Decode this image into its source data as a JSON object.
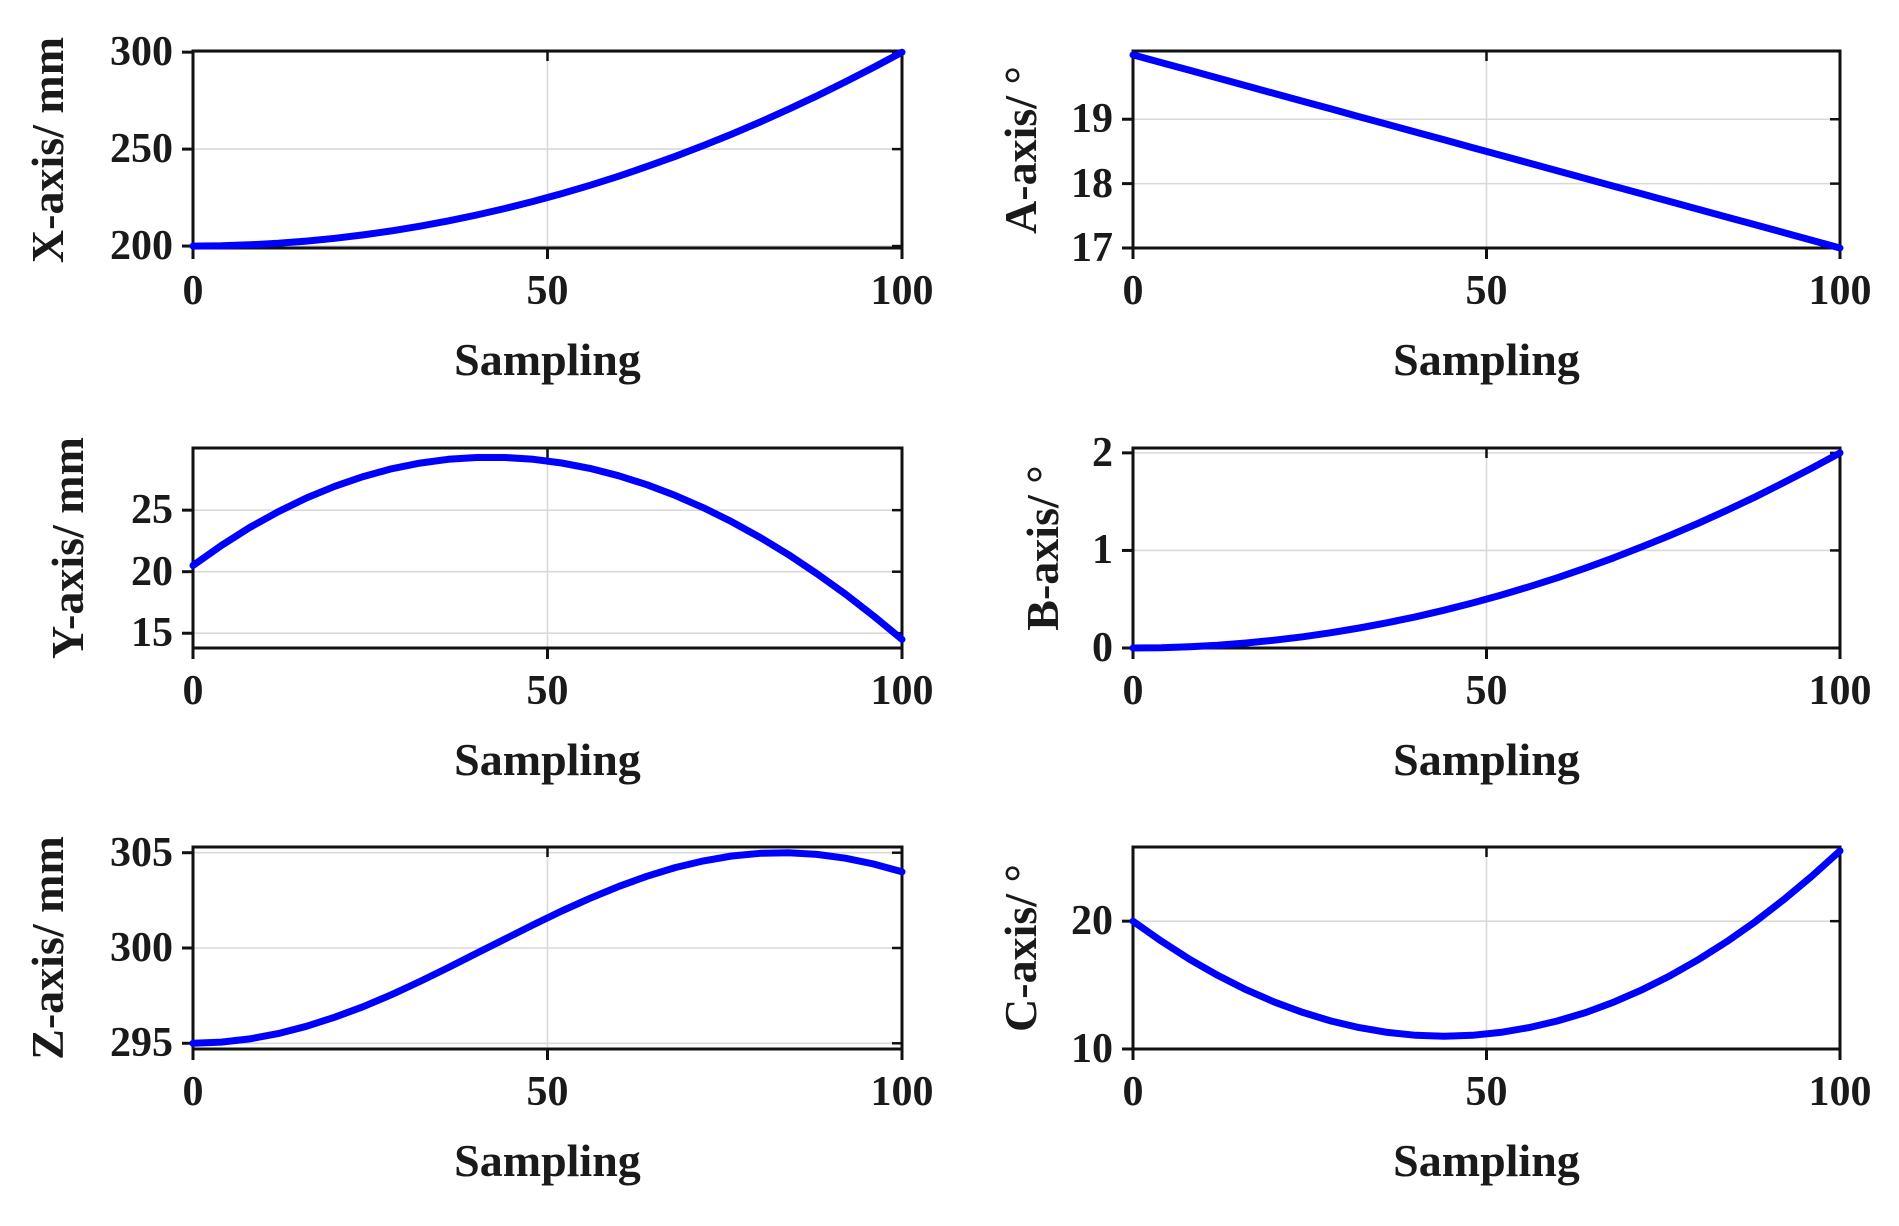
{
  "figure": {
    "background": "#ffffff",
    "axis_color": "#111111",
    "grid_color": "#d9d9d9",
    "text_color": "#1a1a1a"
  },
  "chart_data": {
    "type": "line",
    "layout": "3x2 subplots",
    "grid": true,
    "line_color": "#0000FF",
    "line_width": 7,
    "x_label_all": "Sampling",
    "x": [
      0,
      4,
      8,
      12,
      16,
      20,
      24,
      28,
      32,
      36,
      40,
      44,
      48,
      52,
      56,
      60,
      64,
      68,
      72,
      76,
      80,
      84,
      88,
      92,
      96,
      100
    ],
    "panels": [
      {
        "id": "x-axis",
        "ylabel": "X-axis/ mm",
        "xlabel": "Sampling",
        "xlim": [
          0,
          100
        ],
        "xticks": [
          0,
          50,
          100
        ],
        "ylim": [
          199,
          300.6
        ],
        "yticks": [
          200,
          250,
          300
        ],
        "values": [
          200,
          200.16,
          200.64,
          201.44,
          202.56,
          204,
          205.76,
          207.84,
          210.24,
          212.96,
          216,
          219.36,
          223.04,
          227.04,
          231.36,
          236,
          240.96,
          246.24,
          251.84,
          257.76,
          264,
          270.56,
          277.44,
          284.64,
          292.16,
          300
        ]
      },
      {
        "id": "a-axis",
        "ylabel": "A-axis/ °",
        "xlabel": "Sampling",
        "xlim": [
          0,
          100
        ],
        "xticks": [
          0,
          50,
          100
        ],
        "ylim": [
          17,
          20.06
        ],
        "yticks": [
          17,
          18,
          19
        ],
        "values": [
          20,
          19.88,
          19.76,
          19.64,
          19.52,
          19.4,
          19.28,
          19.16,
          19.04,
          18.92,
          18.8,
          18.68,
          18.56,
          18.44,
          18.32,
          18.2,
          18.08,
          17.96,
          17.84,
          17.72,
          17.6,
          17.48,
          17.36,
          17.24,
          17.12,
          17
        ]
      },
      {
        "id": "y-axis",
        "ylabel": "Y-axis/ mm",
        "xlabel": "Sampling",
        "xlim": [
          0,
          100
        ],
        "xticks": [
          0,
          50,
          100
        ],
        "ylim": [
          13.8,
          30.05
        ],
        "yticks": [
          15,
          20,
          25
        ],
        "values": [
          20.5,
          22.13,
          23.59,
          24.87,
          25.99,
          26.94,
          27.73,
          28.36,
          28.82,
          29.13,
          29.28,
          29.28,
          29.13,
          28.83,
          28.39,
          27.8,
          27.07,
          26.2,
          25.19,
          24.05,
          22.78,
          21.38,
          19.84,
          18.19,
          16.4,
          14.5
        ]
      },
      {
        "id": "b-axis",
        "ylabel": "B-axis/ °",
        "xlabel": "Sampling",
        "xlim": [
          0,
          100
        ],
        "xticks": [
          0,
          50,
          100
        ],
        "ylim": [
          0,
          2.05
        ],
        "yticks": [
          0,
          1,
          2
        ],
        "values": [
          0,
          0.003,
          0.013,
          0.029,
          0.051,
          0.08,
          0.115,
          0.157,
          0.205,
          0.259,
          0.32,
          0.387,
          0.461,
          0.541,
          0.627,
          0.72,
          0.819,
          0.925,
          1.037,
          1.155,
          1.28,
          1.411,
          1.549,
          1.693,
          1.843,
          2
        ]
      },
      {
        "id": "z-axis",
        "ylabel": "Z-axis/ mm",
        "xlabel": "Sampling",
        "xlim": [
          0,
          100
        ],
        "xticks": [
          0,
          50,
          100
        ],
        "ylim": [
          294.7,
          305.3
        ],
        "yticks": [
          295,
          300,
          305
        ],
        "values": [
          295,
          295.06,
          295.23,
          295.51,
          295.89,
          296.37,
          296.92,
          297.55,
          298.24,
          298.97,
          299.72,
          300.47,
          301.22,
          301.94,
          302.61,
          303.22,
          303.76,
          304.22,
          304.57,
          304.83,
          304.97,
          305,
          304.91,
          304.71,
          304.41,
          304
        ]
      },
      {
        "id": "c-axis",
        "ylabel": "C-axis/ °",
        "xlabel": "Sampling",
        "xlim": [
          0,
          100
        ],
        "xticks": [
          0,
          50,
          100
        ],
        "ylim": [
          10,
          25.8
        ],
        "yticks": [
          10,
          20
        ],
        "values": [
          20,
          18.44,
          17.02,
          15.76,
          14.64,
          13.67,
          12.86,
          12.19,
          11.67,
          11.3,
          11.07,
          11,
          11.07,
          11.3,
          11.67,
          12.19,
          12.85,
          13.67,
          14.63,
          15.74,
          17,
          18.4,
          19.96,
          21.66,
          23.51,
          25.5
        ]
      }
    ]
  }
}
